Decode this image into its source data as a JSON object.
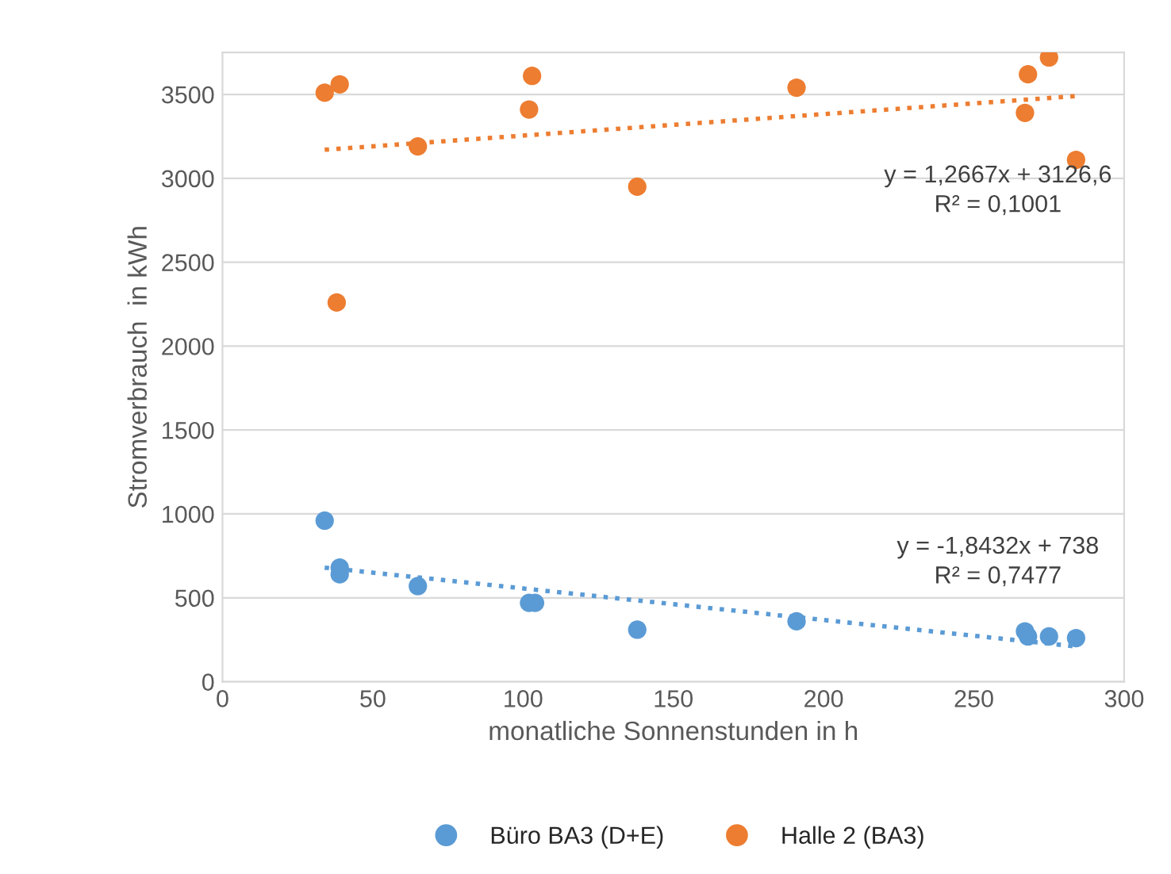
{
  "chart_data": {
    "type": "scatter",
    "xlabel": "monatliche Sonnenstunden in h",
    "ylabel": "Stromverbrauch  in kWh",
    "xlim": [
      0,
      300
    ],
    "xticks": [
      0,
      50,
      100,
      150,
      200,
      250,
      300
    ],
    "ylim": [
      0,
      3750
    ],
    "yticks": [
      0,
      500,
      1000,
      1500,
      2000,
      2500,
      3000,
      3500
    ],
    "grid": "y",
    "legend": "bottom",
    "series": [
      {
        "name": "Büro BA3 (D+E)",
        "color": "#5b9bd5",
        "marker": "circle",
        "x": [
          34,
          39,
          39,
          65,
          102,
          104,
          138,
          191,
          267,
          268,
          275,
          284
        ],
        "values": [
          960,
          680,
          640,
          570,
          470,
          470,
          310,
          360,
          300,
          270,
          270,
          260
        ]
      },
      {
        "name": "Halle 2 (BA3)",
        "color": "#ed7d31",
        "marker": "circle",
        "x": [
          34,
          39,
          38,
          65,
          102,
          103,
          138,
          191,
          268,
          267,
          275,
          284
        ],
        "values": [
          3510,
          3560,
          2260,
          3190,
          3410,
          3610,
          2950,
          3540,
          3620,
          3390,
          3720,
          3110
        ]
      },
      {
        "color": "#5b9bd5",
        "type": "line",
        "marker": "none",
        "line_style": "dotted",
        "x": [
          34,
          284
        ],
        "values": [
          680,
          210
        ]
      },
      {
        "color": "#ed7d31",
        "type": "line",
        "marker": "none",
        "line_style": "dotted",
        "x": [
          34,
          284
        ],
        "values": [
          3170,
          3490
        ]
      }
    ],
    "annotations": [
      "y = -1,8432x + 738\nR² = 0,7477",
      "y = 1,2667x + 3126,6\nR² = 0,1001"
    ]
  }
}
